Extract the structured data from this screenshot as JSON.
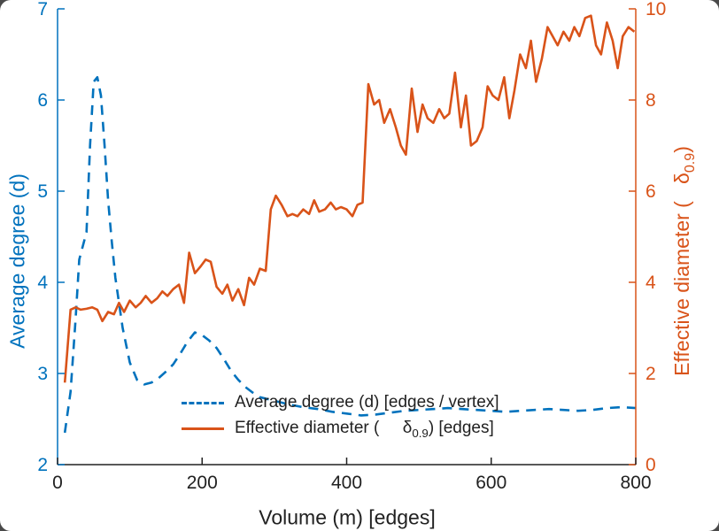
{
  "chart_data": {
    "type": "line",
    "title": "",
    "xlabel": "Volume (m) [edges]",
    "xlim": [
      0,
      800
    ],
    "x_ticks": [
      0,
      200,
      400,
      600,
      800
    ],
    "grid": false,
    "legend_position": "inside-bottom-center",
    "left_axis": {
      "label": "Average degree (d)",
      "color": "#0072BD",
      "lim": [
        2,
        7
      ],
      "ticks": [
        2,
        3,
        4,
        5,
        6,
        7
      ]
    },
    "right_axis": {
      "label_prefix": "Effective diameter (   ",
      "symbol": "δ",
      "subscript": "0.9",
      "label_suffix": ")",
      "color": "#D95319",
      "lim": [
        0,
        10
      ],
      "ticks": [
        0,
        2,
        4,
        6,
        8,
        10
      ]
    },
    "series": [
      {
        "name": "Average degree (d) [edges / vertex]",
        "axis": "left",
        "color": "#0072BD",
        "style": "dashed",
        "points": [
          [
            10,
            2.35
          ],
          [
            18,
            2.8
          ],
          [
            25,
            3.6
          ],
          [
            30,
            4.25
          ],
          [
            35,
            4.4
          ],
          [
            40,
            4.55
          ],
          [
            45,
            5.5
          ],
          [
            50,
            6.2
          ],
          [
            55,
            6.25
          ],
          [
            60,
            6.05
          ],
          [
            65,
            5.5
          ],
          [
            70,
            4.9
          ],
          [
            75,
            4.45
          ],
          [
            80,
            4.05
          ],
          [
            90,
            3.5
          ],
          [
            100,
            3.12
          ],
          [
            110,
            2.93
          ],
          [
            120,
            2.88
          ],
          [
            130,
            2.9
          ],
          [
            140,
            2.95
          ],
          [
            150,
            3.02
          ],
          [
            160,
            3.1
          ],
          [
            170,
            3.22
          ],
          [
            180,
            3.35
          ],
          [
            190,
            3.45
          ],
          [
            200,
            3.42
          ],
          [
            210,
            3.36
          ],
          [
            220,
            3.28
          ],
          [
            230,
            3.16
          ],
          [
            240,
            3.03
          ],
          [
            250,
            2.93
          ],
          [
            260,
            2.85
          ],
          [
            270,
            2.79
          ],
          [
            280,
            2.74
          ],
          [
            300,
            2.7
          ],
          [
            320,
            2.66
          ],
          [
            340,
            2.63
          ],
          [
            360,
            2.61
          ],
          [
            380,
            2.58
          ],
          [
            400,
            2.56
          ],
          [
            420,
            2.54
          ],
          [
            440,
            2.55
          ],
          [
            460,
            2.57
          ],
          [
            480,
            2.59
          ],
          [
            500,
            2.6
          ],
          [
            520,
            2.61
          ],
          [
            540,
            2.62
          ],
          [
            560,
            2.61
          ],
          [
            580,
            2.6
          ],
          [
            600,
            2.59
          ],
          [
            620,
            2.58
          ],
          [
            640,
            2.59
          ],
          [
            660,
            2.6
          ],
          [
            680,
            2.61
          ],
          [
            700,
            2.6
          ],
          [
            720,
            2.59
          ],
          [
            740,
            2.6
          ],
          [
            760,
            2.62
          ],
          [
            780,
            2.63
          ],
          [
            800,
            2.62
          ]
        ]
      },
      {
        "name": "Effective diameter ( δ_0.9 ) [edges]",
        "axis": "right",
        "color": "#D95319",
        "style": "solid",
        "points": [
          [
            10,
            1.8
          ],
          [
            18,
            3.4
          ],
          [
            25,
            3.45
          ],
          [
            32,
            3.4
          ],
          [
            40,
            3.42
          ],
          [
            48,
            3.45
          ],
          [
            55,
            3.4
          ],
          [
            62,
            3.15
          ],
          [
            70,
            3.35
          ],
          [
            78,
            3.3
          ],
          [
            85,
            3.55
          ],
          [
            92,
            3.35
          ],
          [
            100,
            3.6
          ],
          [
            108,
            3.45
          ],
          [
            115,
            3.55
          ],
          [
            122,
            3.7
          ],
          [
            130,
            3.55
          ],
          [
            138,
            3.65
          ],
          [
            145,
            3.8
          ],
          [
            152,
            3.7
          ],
          [
            160,
            3.85
          ],
          [
            168,
            3.95
          ],
          [
            175,
            3.55
          ],
          [
            182,
            4.65
          ],
          [
            190,
            4.2
          ],
          [
            198,
            4.35
          ],
          [
            205,
            4.5
          ],
          [
            212,
            4.45
          ],
          [
            220,
            3.9
          ],
          [
            228,
            3.75
          ],
          [
            235,
            3.95
          ],
          [
            242,
            3.6
          ],
          [
            250,
            3.85
          ],
          [
            258,
            3.5
          ],
          [
            265,
            4.1
          ],
          [
            272,
            3.95
          ],
          [
            280,
            4.3
          ],
          [
            288,
            4.25
          ],
          [
            295,
            5.6
          ],
          [
            302,
            5.9
          ],
          [
            310,
            5.7
          ],
          [
            318,
            5.45
          ],
          [
            325,
            5.5
          ],
          [
            332,
            5.45
          ],
          [
            340,
            5.6
          ],
          [
            348,
            5.5
          ],
          [
            355,
            5.8
          ],
          [
            362,
            5.55
          ],
          [
            370,
            5.6
          ],
          [
            378,
            5.75
          ],
          [
            385,
            5.6
          ],
          [
            392,
            5.65
          ],
          [
            400,
            5.6
          ],
          [
            408,
            5.45
          ],
          [
            415,
            5.7
          ],
          [
            422,
            5.75
          ],
          [
            430,
            8.35
          ],
          [
            438,
            7.9
          ],
          [
            445,
            8.0
          ],
          [
            452,
            7.5
          ],
          [
            460,
            7.8
          ],
          [
            468,
            7.4
          ],
          [
            475,
            7.0
          ],
          [
            482,
            6.8
          ],
          [
            490,
            8.25
          ],
          [
            498,
            7.3
          ],
          [
            505,
            7.9
          ],
          [
            512,
            7.6
          ],
          [
            520,
            7.5
          ],
          [
            528,
            7.8
          ],
          [
            535,
            7.6
          ],
          [
            542,
            7.7
          ],
          [
            550,
            8.6
          ],
          [
            558,
            7.4
          ],
          [
            565,
            8.1
          ],
          [
            572,
            7.0
          ],
          [
            580,
            7.1
          ],
          [
            588,
            7.4
          ],
          [
            595,
            8.3
          ],
          [
            602,
            8.1
          ],
          [
            610,
            8.0
          ],
          [
            618,
            8.5
          ],
          [
            625,
            7.6
          ],
          [
            632,
            8.2
          ],
          [
            640,
            9.0
          ],
          [
            648,
            8.7
          ],
          [
            655,
            9.3
          ],
          [
            662,
            8.4
          ],
          [
            670,
            8.9
          ],
          [
            678,
            9.6
          ],
          [
            685,
            9.4
          ],
          [
            692,
            9.2
          ],
          [
            700,
            9.5
          ],
          [
            708,
            9.3
          ],
          [
            715,
            9.6
          ],
          [
            722,
            9.4
          ],
          [
            730,
            9.8
          ],
          [
            738,
            9.85
          ],
          [
            745,
            9.2
          ],
          [
            752,
            9.0
          ],
          [
            760,
            9.7
          ],
          [
            768,
            9.3
          ],
          [
            775,
            8.7
          ],
          [
            782,
            9.4
          ],
          [
            790,
            9.6
          ],
          [
            798,
            9.5
          ]
        ]
      }
    ]
  },
  "axis_labels": {
    "left": "Average degree (d)",
    "x": "Volume (m) [edges]"
  },
  "legend": {
    "entries": [
      {
        "label": "Average degree (d) [edges / vertex]"
      },
      {
        "prefix": "Effective diameter (     ",
        "symbol": "δ",
        "sub": "0.9",
        "suffix": ") [edges]"
      }
    ]
  },
  "colors": {
    "left_series": "#0072BD",
    "right_series": "#D95319",
    "x_axis": "#212121"
  }
}
